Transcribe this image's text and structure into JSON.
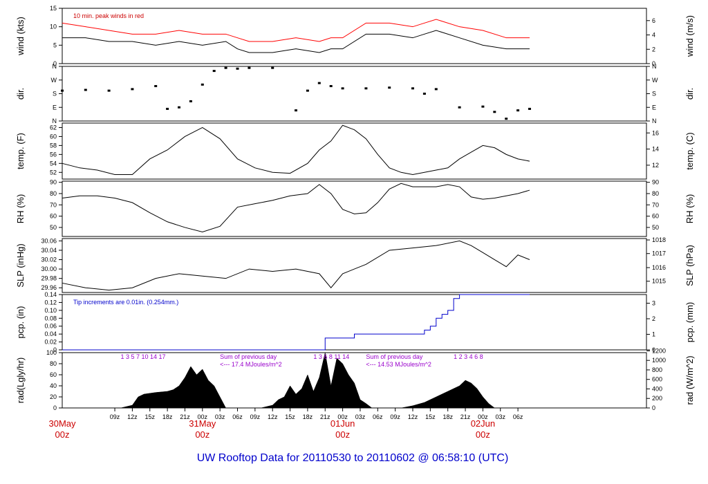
{
  "chart_data": {
    "type": "line",
    "title": "UW Rooftop Data for 20110530  to  20110602 @ 06:58:10  (UTC)",
    "x_range_hours": [
      0,
      100
    ],
    "x_ticks": [
      {
        "h": 9,
        "label": "09z"
      },
      {
        "h": 12,
        "label": "12z"
      },
      {
        "h": 15,
        "label": "15z"
      },
      {
        "h": 18,
        "label": "18z"
      },
      {
        "h": 21,
        "label": "21z"
      },
      {
        "h": 24,
        "label": "00z"
      },
      {
        "h": 27,
        "label": "03z"
      },
      {
        "h": 30,
        "label": "06z"
      },
      {
        "h": 33,
        "label": "09z"
      },
      {
        "h": 36,
        "label": "12z"
      },
      {
        "h": 39,
        "label": "15z"
      },
      {
        "h": 42,
        "label": "18z"
      },
      {
        "h": 45,
        "label": "21z"
      },
      {
        "h": 48,
        "label": "00z"
      },
      {
        "h": 51,
        "label": "03z"
      },
      {
        "h": 54,
        "label": "06z"
      },
      {
        "h": 57,
        "label": "09z"
      },
      {
        "h": 60,
        "label": "12z"
      },
      {
        "h": 63,
        "label": "15z"
      },
      {
        "h": 66,
        "label": "18z"
      },
      {
        "h": 69,
        "label": "21z"
      },
      {
        "h": 72,
        "label": "00z"
      },
      {
        "h": 75,
        "label": "03z"
      },
      {
        "h": 78,
        "label": "06z"
      }
    ],
    "day_labels": [
      {
        "h": 0,
        "line1": "30May",
        "line2": "00z"
      },
      {
        "h": 24,
        "line1": "31May",
        "line2": "00z"
      },
      {
        "h": 48,
        "line1": "01Jun",
        "line2": "00z"
      },
      {
        "h": 72,
        "line1": "02Jun",
        "line2": "00z"
      }
    ],
    "panels": [
      {
        "id": "wind",
        "left_label": "wind (kts)",
        "right_label": "wind (m/s)",
        "ylim": [
          0,
          15
        ],
        "left_ticks": [
          "0",
          "5",
          "10",
          "15"
        ],
        "left_tick_values": [
          0,
          5,
          10,
          15
        ],
        "right_ticks": [
          "0",
          "2",
          "4",
          "6"
        ],
        "right_tick_values": [
          0,
          3.888,
          7.776,
          11.664
        ],
        "annotation": "10 min. peak winds in red",
        "series": [
          {
            "name": "wind speed",
            "color": "#000000",
            "x": [
              0,
              4,
              8,
              12,
              16,
              20,
              24,
              28,
              30,
              32,
              36,
              40,
              44,
              46,
              48,
              52,
              56,
              60,
              62,
              64,
              68,
              72,
              76,
              80
            ],
            "y": [
              7,
              7,
              6,
              6,
              5,
              6,
              5,
              6,
              4,
              3,
              3,
              4,
              3,
              4,
              4,
              8,
              8,
              7,
              8,
              9,
              7,
              5,
              4,
              4
            ]
          },
          {
            "name": "peak wind",
            "color": "#ff0000",
            "x": [
              0,
              4,
              8,
              12,
              16,
              20,
              24,
              28,
              30,
              32,
              36,
              40,
              44,
              46,
              48,
              52,
              56,
              60,
              62,
              64,
              68,
              72,
              76,
              80
            ],
            "y": [
              11,
              10,
              9,
              8,
              8,
              9,
              8,
              8,
              7,
              6,
              6,
              7,
              6,
              7,
              7,
              11,
              11,
              10,
              11,
              12,
              10,
              9,
              7,
              7
            ]
          }
        ]
      },
      {
        "id": "dir",
        "left_label": "dir.",
        "right_label": "dir.",
        "ylim": [
          0,
          360
        ],
        "left_ticks": [
          "N",
          "E",
          "S",
          "W",
          "N"
        ],
        "left_tick_values": [
          0,
          90,
          180,
          270,
          360
        ],
        "right_ticks": [
          "N",
          "E",
          "S",
          "W",
          "N"
        ],
        "right_tick_values": [
          0,
          90,
          180,
          270,
          360
        ],
        "series": [
          {
            "name": "wind direction",
            "color": "#000000",
            "style": "dots",
            "x": [
              0,
              4,
              8,
              12,
              16,
              18,
              20,
              22,
              24,
              26,
              28,
              30,
              32,
              36,
              40,
              42,
              44,
              46,
              48,
              52,
              56,
              60,
              62,
              64,
              68,
              72,
              74,
              76,
              78,
              80
            ],
            "y": [
              200,
              205,
              200,
              210,
              230,
              80,
              90,
              130,
              240,
              330,
              350,
              345,
              350,
              350,
              70,
              200,
              250,
              230,
              215,
              215,
              220,
              215,
              180,
              210,
              90,
              95,
              60,
              15,
              70,
              80
            ]
          }
        ]
      },
      {
        "id": "temp",
        "left_label": "temp. (F)",
        "right_label": "temp. (C)",
        "ylim": [
          50.5,
          63
        ],
        "left_ticks": [
          "52",
          "54",
          "56",
          "58",
          "60",
          "62"
        ],
        "left_tick_values": [
          52,
          54,
          56,
          58,
          60,
          62
        ],
        "right_ticks": [
          "12",
          "14",
          "16"
        ],
        "right_tick_values": [
          53.6,
          57.2,
          60.8
        ],
        "series": [
          {
            "name": "temperature",
            "color": "#000000",
            "x": [
              0,
              3,
              6,
              9,
              12,
              15,
              18,
              21,
              24,
              27,
              30,
              33,
              36,
              39,
              42,
              44,
              46,
              48,
              50,
              52,
              54,
              56,
              58,
              60,
              62,
              64,
              66,
              68,
              70,
              72,
              74,
              76,
              78,
              80
            ],
            "y": [
              54,
              53,
              52.5,
              51.5,
              51.5,
              55,
              57,
              60,
              62,
              59.5,
              55,
              53,
              52,
              51.8,
              54,
              57,
              59,
              62.5,
              61.5,
              59.5,
              56,
              53,
              52,
              51.5,
              52,
              52.5,
              53,
              55,
              56.5,
              58,
              57.5,
              56,
              55,
              54.5
            ]
          }
        ]
      },
      {
        "id": "rh",
        "left_label": "RH (%)",
        "right_label": "RH (%)",
        "ylim": [
          42,
          91
        ],
        "left_ticks": [
          "50",
          "60",
          "70",
          "80",
          "90"
        ],
        "left_tick_values": [
          50,
          60,
          70,
          80,
          90
        ],
        "right_ticks": [
          "50",
          "60",
          "70",
          "80",
          "90"
        ],
        "right_tick_values": [
          50,
          60,
          70,
          80,
          90
        ],
        "series": [
          {
            "name": "relative humidity",
            "color": "#000000",
            "x": [
              0,
              3,
              6,
              9,
              12,
              15,
              18,
              21,
              24,
              27,
              30,
              33,
              36,
              39,
              42,
              44,
              46,
              48,
              50,
              52,
              54,
              56,
              58,
              60,
              62,
              64,
              66,
              68,
              70,
              72,
              74,
              76,
              78,
              80
            ],
            "y": [
              76,
              78,
              78,
              76,
              72,
              63,
              55,
              50,
              46,
              51,
              68,
              71,
              74,
              78,
              80,
              88,
              80,
              66,
              62,
              63,
              72,
              84,
              89,
              86,
              86,
              86,
              88,
              86,
              77,
              75,
              76,
              78,
              80,
              83
            ]
          }
        ]
      },
      {
        "id": "slp",
        "left_label": "SLP (inHg)",
        "right_label": "SLP (hPa)",
        "ylim": [
          29.95,
          30.065
        ],
        "left_ticks": [
          "29.96",
          "29.98",
          "30.00",
          "30.02",
          "30.04",
          "30.06"
        ],
        "left_tick_values": [
          29.96,
          29.98,
          30.0,
          30.02,
          30.04,
          30.06
        ],
        "right_ticks": [
          "1015",
          "1016",
          "1017",
          "1018"
        ],
        "right_tick_values": [
          29.974,
          30.003,
          30.033,
          30.062
        ],
        "series": [
          {
            "name": "sea level pressure",
            "color": "#000000",
            "x": [
              0,
              4,
              8,
              12,
              16,
              20,
              24,
              28,
              32,
              36,
              40,
              44,
              46,
              48,
              52,
              56,
              60,
              64,
              68,
              70,
              72,
              74,
              76,
              78,
              80
            ],
            "y": [
              29.97,
              29.96,
              29.955,
              29.96,
              29.98,
              29.99,
              29.985,
              29.98,
              30.0,
              29.995,
              30.0,
              29.99,
              29.96,
              29.99,
              30.01,
              30.04,
              30.045,
              30.05,
              30.06,
              30.05,
              30.035,
              30.02,
              30.005,
              30.03,
              30.02
            ]
          }
        ]
      },
      {
        "id": "pcp",
        "left_label": "pcp. (in)",
        "right_label": "pcp. (mm)",
        "ylim": [
          0,
          0.14
        ],
        "left_ticks": [
          "0",
          "0.02",
          "0.04",
          "0.06",
          "0.08",
          "0.10",
          "0.12",
          "0.14"
        ],
        "left_tick_values": [
          0,
          0.02,
          0.04,
          0.06,
          0.08,
          0.1,
          0.12,
          0.14
        ],
        "right_ticks": [
          "0",
          "1",
          "2",
          "3"
        ],
        "right_tick_values": [
          0,
          0.03937,
          0.07874,
          0.11811
        ],
        "annotation": "Tip increments are 0.01in. (0.254mm.)",
        "series": [
          {
            "name": "cumulative precipitation",
            "color": "#0000cc",
            "style": "step",
            "x": [
              0,
              44,
              45,
              50,
              59,
              62,
              63,
              64,
              65,
              66,
              67,
              68,
              80
            ],
            "y": [
              0,
              0,
              0.03,
              0.04,
              0.04,
              0.05,
              0.06,
              0.08,
              0.09,
              0.1,
              0.13,
              0.14,
              0.14
            ]
          }
        ]
      },
      {
        "id": "rad",
        "left_label": "rad(Lgly/hr)",
        "right_label": "rad (W/m^2)",
        "ylim": [
          0,
          100
        ],
        "left_ticks": [
          "0",
          "20",
          "40",
          "60",
          "80",
          "100"
        ],
        "left_tick_values": [
          0,
          20,
          40,
          60,
          80,
          100
        ],
        "right_ticks": [
          "0",
          "200",
          "400",
          "600",
          "800",
          "1000",
          "1200"
        ],
        "right_tick_values": [
          0,
          17.2,
          34.4,
          51.6,
          68.8,
          86.0,
          103.2
        ],
        "annotations": [
          {
            "h": 10,
            "line1": "1    3   5   7 10     14         17",
            "line2": ""
          },
          {
            "h": 27,
            "line1": "Sum of previous day",
            "line2": "<--- 17.4 MJoules/m^2"
          },
          {
            "h": 43,
            "line1": "1      3   6     8   11     14",
            "line2": ""
          },
          {
            "h": 52,
            "line1": "Sum of previous day",
            "line2": "<--- 14.53 MJoules/m^2"
          },
          {
            "h": 67,
            "line1": "1      2   3   4    6     8",
            "line2": ""
          }
        ],
        "series": [
          {
            "name": "solar radiation",
            "color": "#000000",
            "style": "fill",
            "x": [
              10,
              12,
              13,
              14,
              16,
              18,
              19,
              20,
              21,
              22,
              23,
              24,
              25,
              26,
              27,
              28,
              34,
              36,
              37,
              38,
              39,
              40,
              41,
              42,
              43,
              44,
              45,
              46,
              47,
              48,
              49,
              50,
              51,
              52,
              53,
              58,
              60,
              62,
              64,
              66,
              68,
              69,
              70,
              71,
              72,
              73,
              74
            ],
            "y": [
              0,
              5,
              20,
              25,
              28,
              30,
              33,
              40,
              55,
              75,
              60,
              70,
              50,
              40,
              20,
              0,
              0,
              5,
              15,
              20,
              40,
              25,
              35,
              60,
              30,
              55,
              100,
              40,
              90,
              80,
              60,
              45,
              15,
              8,
              0,
              0,
              4,
              10,
              20,
              30,
              40,
              50,
              45,
              35,
              20,
              8,
              0
            ]
          }
        ]
      }
    ]
  }
}
